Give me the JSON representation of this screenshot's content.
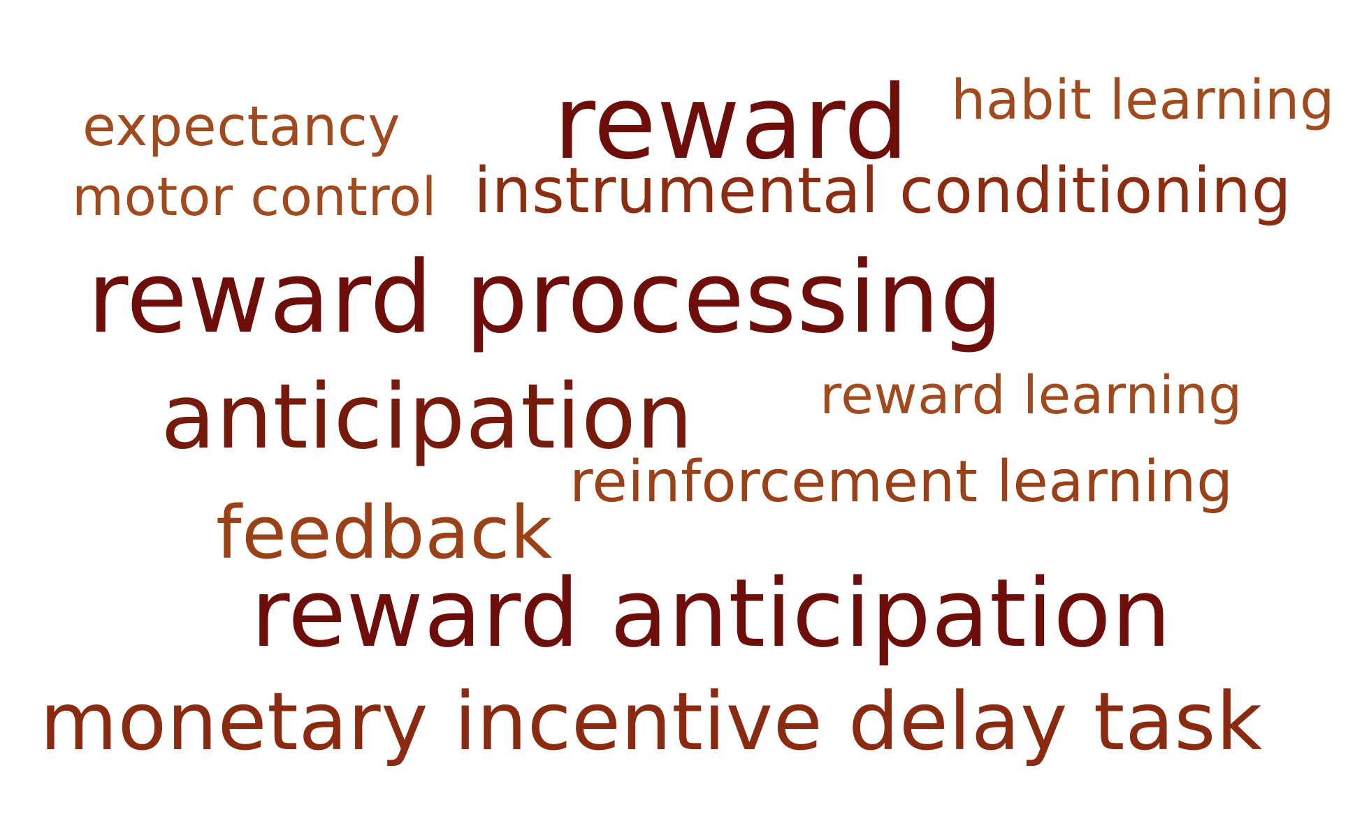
{
  "colors": {
    "dark_red": "#6e0e0a",
    "deep_rust": "#7d1d0d",
    "rust": "#8c2d12",
    "light_rust": "#9a4117"
  },
  "words": [
    {
      "text": "reward",
      "color": "#6e0e0a"
    },
    {
      "text": "habit learning",
      "color": "#a04a1e"
    },
    {
      "text": "expectancy",
      "color": "#a04a1e"
    },
    {
      "text": "motor control",
      "color": "#a04a1e"
    },
    {
      "text": "instrumental conditioning",
      "color": "#8c2d12"
    },
    {
      "text": "reward processing",
      "color": "#6e0e0a"
    },
    {
      "text": "anticipation",
      "color": "#761a0c"
    },
    {
      "text": "reward learning",
      "color": "#a04a1e"
    },
    {
      "text": "reinforcement learning",
      "color": "#9a4117"
    },
    {
      "text": "feedback",
      "color": "#9a4117"
    },
    {
      "text": "reward anticipation",
      "color": "#6e0e0a"
    },
    {
      "text": "monetary incentive delay task",
      "color": "#8a2a10"
    }
  ]
}
